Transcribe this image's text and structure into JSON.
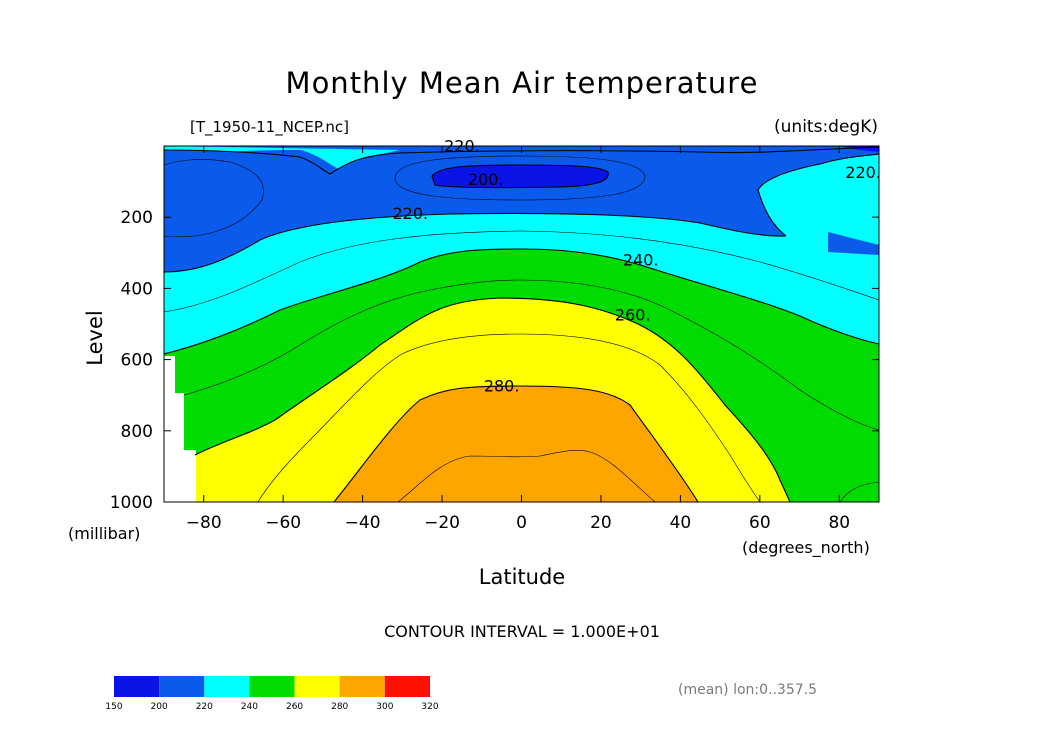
{
  "chart_data": {
    "type": "contour",
    "title": "Monthly Mean Air temperature",
    "file_label": "[T_1950-11_NCEP.nc]",
    "units_label": "(units:degK)",
    "xlabel": "Latitude",
    "x_units": "(degrees_north)",
    "ylabel": "Level",
    "y_units": "(millibar)",
    "xlim": [
      -90,
      90
    ],
    "ylim": [
      0,
      1000
    ],
    "y_inverted": true,
    "x_ticks": [
      -80,
      -60,
      -40,
      -20,
      0,
      20,
      40,
      60,
      80
    ],
    "x_tick_labels": [
      "−80",
      "−60",
      "−40",
      "−20",
      "0",
      "20",
      "40",
      "60",
      "80"
    ],
    "y_ticks": [
      200,
      400,
      600,
      800,
      1000
    ],
    "y_tick_labels": [
      "200",
      "400",
      "600",
      "800",
      "1000"
    ],
    "contour_interval_label": "CONTOUR INTERVAL = 1.000E+01",
    "contour_labels": [
      {
        "text": "220.",
        "lat": -15,
        "level": 15
      },
      {
        "text": "200.",
        "lat": -9,
        "level": 110
      },
      {
        "text": "220.",
        "lat": 86,
        "level": 90
      },
      {
        "text": "220.",
        "lat": -28,
        "level": 205
      },
      {
        "text": "240.",
        "lat": 30,
        "level": 335
      },
      {
        "text": "260.",
        "lat": 28,
        "level": 490
      },
      {
        "text": "280.",
        "lat": -5,
        "level": 690
      }
    ],
    "colorbar": {
      "levels": [
        150,
        200,
        220,
        240,
        260,
        280,
        300,
        320
      ],
      "labels": [
        "150",
        "200",
        "220",
        "240",
        "260",
        "280",
        "300",
        "320"
      ],
      "colors": [
        "#0a14e6",
        "#0a5aec",
        "#00ffff",
        "#00dc00",
        "#ffff00",
        "#ffa500",
        "#ff1000"
      ]
    },
    "band_colors": {
      "below_200": "#0a14e6",
      "200_220": "#0a5aec",
      "220_240": "#00ffff",
      "240_260": "#00dc00",
      "260_280": "#ffff00",
      "280_300": "#ffa500"
    },
    "mean_label": "(mean) lon:0..357.5"
  }
}
